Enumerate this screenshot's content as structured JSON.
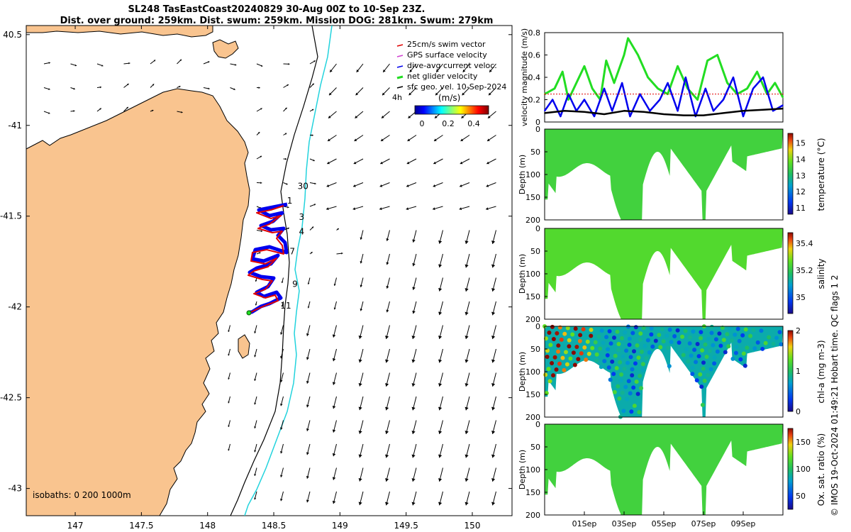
{
  "title": {
    "line1": "SL248 TasEastCoast20240829 30-Aug 00Z to 10-Sep 23Z.",
    "line2": "Dist. over ground: 259km. Dist. swum: 259km. Mission DOG: 281km. Swum: 279km"
  },
  "copyright": "© IMOS 19-Oct-2024 01:49:21 Hobart time. QC flags 1  2",
  "colors": {
    "land": "#f9c48f",
    "swim_vector": "#e00000",
    "gps_velocity": "#d040d0",
    "current": "#0000ee",
    "net_velocity": "#22dd22",
    "sfc_geo": "#000000",
    "isobath_200": "#000000",
    "isobath_1000": "#22d3dd"
  },
  "map": {
    "lon_ticks": [
      "147",
      "147.5",
      "148",
      "148.5",
      "149",
      "149.5",
      "150"
    ],
    "lat_ticks": [
      "40.5",
      "-41",
      "-41.5",
      "-42",
      "-42.5",
      "-43"
    ],
    "legend": [
      "25cm/s swim vector",
      "GPS surface velocity",
      "dive-avg current veloc.",
      "net glider velocity",
      "sfc geo. vel. 10-Sep-2024"
    ],
    "colorbar_title": "(m/s)",
    "colorbar_ticks": [
      "0",
      "0.2",
      "0.4"
    ],
    "label_4h": "4h",
    "isobaths": "isobaths: 0   200  1000m",
    "day_labels": [
      {
        "text": "30",
        "lon": 148.68,
        "lat": -41.35
      },
      {
        "text": "1",
        "lon": 148.6,
        "lat": -41.43
      },
      {
        "text": "3",
        "lon": 148.69,
        "lat": -41.52
      },
      {
        "text": "4",
        "lon": 148.69,
        "lat": -41.6
      },
      {
        "text": "7",
        "lon": 148.62,
        "lat": -41.71
      },
      {
        "text": "9",
        "lon": 148.64,
        "lat": -41.89
      },
      {
        "text": "11",
        "lon": 148.55,
        "lat": -42.01
      }
    ]
  },
  "chart_data": [
    {
      "type": "line",
      "title": "",
      "ylabel": "velocity magnitude (m/s)",
      "xlabel": "",
      "ylim": [
        0,
        0.8
      ],
      "yticks": [
        "0",
        "0.2",
        "0.4",
        "0.6",
        "0.8"
      ],
      "x_ticks": [
        "01Sep",
        "03Sep",
        "05Sep",
        "07Sep",
        "09Sep"
      ],
      "x_days": [
        2,
        4,
        6,
        8,
        10
      ],
      "x_range_days": [
        0,
        12
      ],
      "series": [
        {
          "name": "net glider velocity",
          "x": [
            0,
            0.5,
            0.9,
            1.2,
            1.6,
            2.0,
            2.4,
            2.8,
            3.1,
            3.5,
            4.0,
            4.2,
            4.7,
            5.2,
            5.7,
            6.2,
            6.7,
            7.2,
            7.7,
            8.2,
            8.7,
            9.2,
            9.7,
            10.2,
            10.7,
            11.2,
            11.6,
            12
          ],
          "values": [
            0.25,
            0.3,
            0.45,
            0.2,
            0.35,
            0.5,
            0.3,
            0.2,
            0.55,
            0.35,
            0.6,
            0.75,
            0.6,
            0.4,
            0.3,
            0.25,
            0.5,
            0.3,
            0.2,
            0.55,
            0.6,
            0.35,
            0.25,
            0.3,
            0.45,
            0.25,
            0.35,
            0.22
          ]
        },
        {
          "name": "dive-avg current veloc.",
          "x": [
            0,
            0.4,
            0.8,
            1.2,
            1.6,
            2.0,
            2.5,
            3.0,
            3.4,
            3.9,
            4.3,
            4.8,
            5.3,
            5.8,
            6.2,
            6.7,
            7.1,
            7.6,
            8.1,
            8.5,
            9.0,
            9.5,
            10.0,
            10.5,
            11.0,
            11.5,
            12
          ],
          "values": [
            0.1,
            0.2,
            0.05,
            0.25,
            0.1,
            0.2,
            0.05,
            0.3,
            0.1,
            0.35,
            0.05,
            0.25,
            0.1,
            0.2,
            0.35,
            0.1,
            0.4,
            0.05,
            0.3,
            0.1,
            0.2,
            0.4,
            0.05,
            0.3,
            0.4,
            0.1,
            0.15
          ]
        },
        {
          "name": "sfc geo. vel. 10-Sep-2024",
          "x": [
            0,
            1,
            2,
            3,
            4,
            5,
            6,
            7,
            8,
            9,
            10,
            11,
            12
          ],
          "values": [
            0.08,
            0.1,
            0.09,
            0.07,
            0.1,
            0.09,
            0.07,
            0.06,
            0.06,
            0.08,
            0.1,
            0.11,
            0.12
          ]
        },
        {
          "name": "25cm/s swim vector",
          "x": [
            0,
            12
          ],
          "values": [
            0.25,
            0.25
          ]
        }
      ]
    },
    {
      "type": "heatmap",
      "variable": "temperature (°C)",
      "ylabel": "Depth (m)",
      "ylim": [
        0,
        200
      ],
      "yticks": [
        "0",
        "50",
        "100",
        "150",
        "200"
      ],
      "colorbar_ticks": [
        "11",
        "12",
        "13",
        "14",
        "15"
      ],
      "colorbar_range": [
        10.6,
        15.6
      ],
      "value": 13.5
    },
    {
      "type": "heatmap",
      "variable": "salinity",
      "ylabel": "Depth (m)",
      "ylim": [
        0,
        200
      ],
      "yticks": [
        "0",
        "50",
        "100",
        "150",
        "200"
      ],
      "colorbar_ticks": [
        "35",
        "35.2",
        "35.4"
      ],
      "colorbar_range": [
        34.88,
        35.48
      ],
      "value": 35.25
    },
    {
      "type": "heatmap",
      "variable": "chl-a (mg m-3)",
      "ylabel": "Depth (m)",
      "ylim": [
        0,
        200
      ],
      "yticks": [
        "0",
        "50",
        "100",
        "150",
        "200"
      ],
      "colorbar_ticks": [
        "0",
        "1",
        "2"
      ],
      "colorbar_range": [
        0,
        2
      ],
      "value": 0.8
    },
    {
      "type": "heatmap",
      "variable": "Ox. sat. ratio (%)",
      "ylabel": "Depth (m)",
      "ylim": [
        0,
        200
      ],
      "yticks": [
        "0",
        "50",
        "100",
        "150",
        "200"
      ],
      "colorbar_ticks": [
        "50",
        "100",
        "150"
      ],
      "colorbar_range": [
        25,
        175
      ],
      "value": 112
    }
  ]
}
